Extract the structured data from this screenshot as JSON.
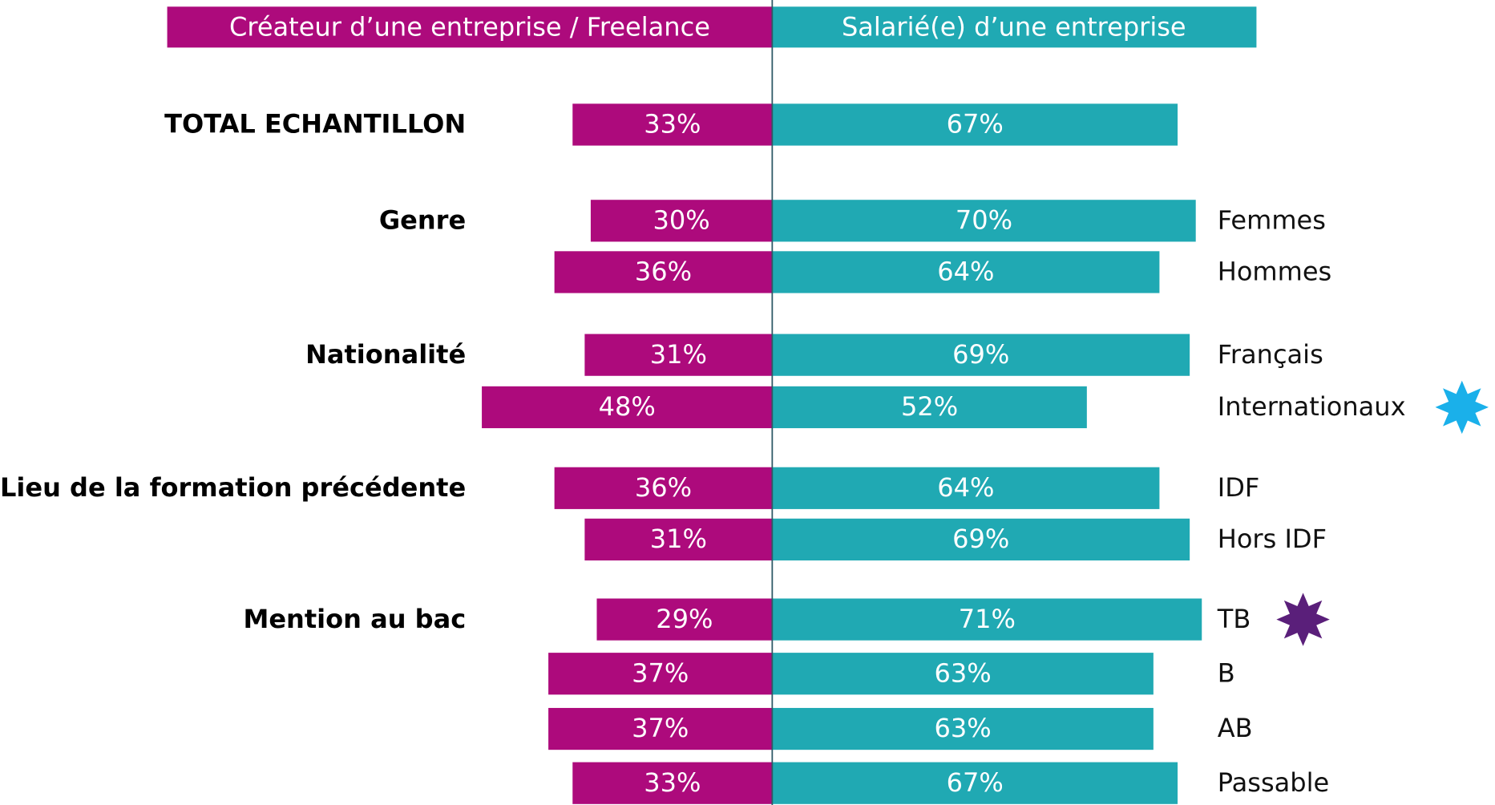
{
  "chart_data": {
    "type": "diverging_bar",
    "group_labels": [
      "TOTAL ECHANTILLON",
      "Genre",
      null,
      "Nationalité",
      null,
      "Lieu de la formation précédente",
      null,
      "Mention au bac",
      null,
      null,
      null
    ],
    "categories": [
      null,
      "Femmes",
      "Hommes",
      "Français",
      "Internationaux",
      "IDF",
      "Hors IDF",
      "TB",
      "B",
      "AB",
      "Passable"
    ],
    "series": [
      {
        "name": "Créateur d’une entreprise / Freelance",
        "color": "#ad0a7c",
        "side": "left",
        "values": [
          33,
          30,
          36,
          31,
          48,
          36,
          31,
          29,
          37,
          37,
          33
        ],
        "value_labels": [
          "33%",
          "30%",
          "36%",
          "31%",
          "48%",
          "36%",
          "31%",
          "29%",
          "37%",
          "37%",
          "33%"
        ]
      },
      {
        "name": "Salarié(e) d’une entreprise",
        "color": "#20a9b3",
        "side": "right",
        "values": [
          67,
          70,
          64,
          69,
          52,
          64,
          69,
          71,
          63,
          63,
          67
        ],
        "value_labels": [
          "67%",
          "70%",
          "64%",
          "69%",
          "52%",
          "64%",
          "69%",
          "71%",
          "63%",
          "63%",
          "67%"
        ]
      }
    ]
  }
}
